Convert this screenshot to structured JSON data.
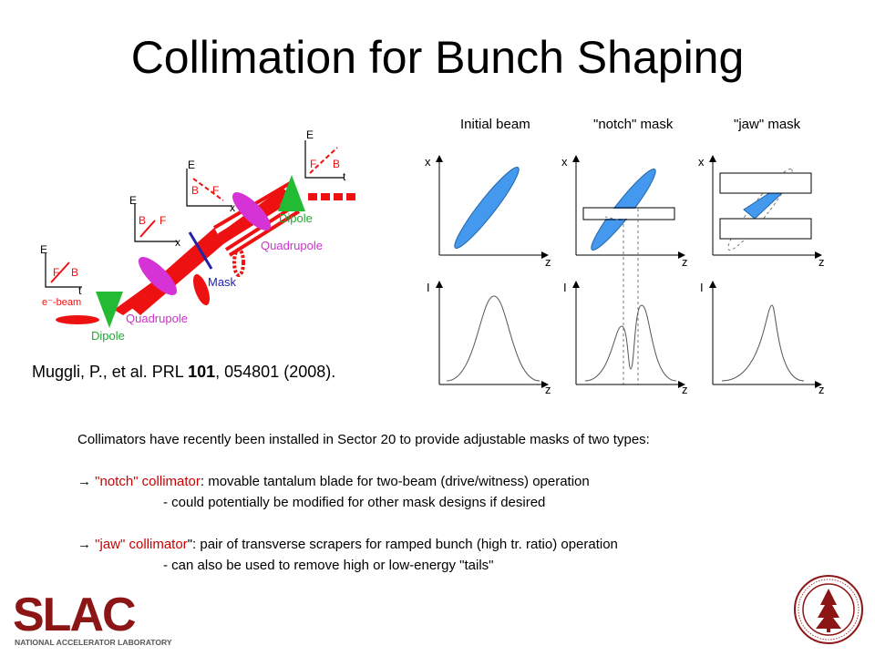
{
  "title": "Collimation for Bunch Shaping",
  "panel_labels": {
    "initial": "Initial beam",
    "notch": "\"notch\" mask",
    "jaw": "\"jaw\" mask"
  },
  "citation": {
    "prefix": "Muggli, P., et al. PRL ",
    "volume": "101",
    "suffix": ", 054801 (2008)."
  },
  "beamline": {
    "axis_e": "E",
    "axis_x": "x",
    "axis_t": "t",
    "f": "F",
    "b": "B",
    "ebeam": "e⁻-beam",
    "dipole": "Dipole",
    "quadrupole": "Quadrupole",
    "mask": "Mask"
  },
  "phase_axes": {
    "x": "x",
    "z": "z",
    "i": "I"
  },
  "body": {
    "intro": "Collimators have recently been installed in Sector 20 to provide adjustable masks of two types:",
    "notch_arrow": " ",
    "notch_name": "\"notch\" collimator",
    "notch_desc": ":  movable tantalum blade for two-beam (drive/witness) operation",
    "notch_sub": "- could potentially be modified for other mask designs if desired",
    "jaw_arrow": " ",
    "jaw_name": "\"jaw\" collimator",
    "jaw_desc": "\": pair of transverse scrapers for ramped bunch (high tr. ratio) operation",
    "jaw_sub": "- can also be used to remove high or low-energy \"tails\""
  },
  "logo": {
    "text": "SLAC",
    "subtitle": "NATIONAL ACCELERATOR LABORATORY",
    "color": "#8c1515"
  },
  "seal": {
    "name": "stanford-seal"
  },
  "colors": {
    "beam_red": "#ee1111",
    "quad_magenta": "#d633d6",
    "dipole_green": "#22bb33",
    "beam_blue": "#4499ee",
    "mask_blue": "#2222aa"
  }
}
